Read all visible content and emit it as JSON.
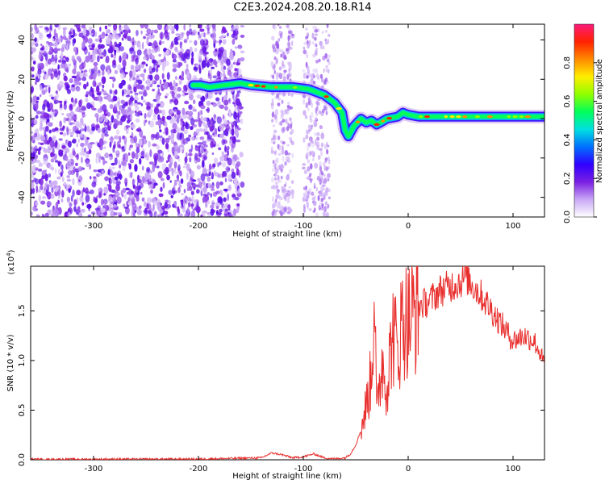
{
  "figure": {
    "title": "C2E3.2024.208.20.18.R14"
  },
  "chart_data": [
    {
      "type": "heatmap",
      "xlabel": "Height of straight line (km)",
      "ylabel": "Frequency (Hz)",
      "xlim": [
        -360,
        130
      ],
      "ylim": [
        -50,
        48
      ],
      "x_ticks": [
        -300,
        -200,
        -100,
        0,
        100
      ],
      "y_ticks": [
        -40,
        -20,
        0,
        20,
        40
      ],
      "colorbar": {
        "label": "Normalized spectral amplitude",
        "range": [
          0,
          1
        ],
        "ticks": [
          0.0,
          0.2,
          0.4,
          0.6,
          0.8
        ],
        "colors": [
          "#ffffff",
          "#c9a7f5",
          "#7a1fe3",
          "#3000ff",
          "#0070ff",
          "#00e0e0",
          "#00ff5a",
          "#90ff00",
          "#ffee00",
          "#ff8a00",
          "#ff2200",
          "#ff1a7a"
        ]
      },
      "noise_region": {
        "x": [
          -360,
          -158
        ],
        "y": [
          -50,
          48
        ]
      },
      "noise_streaks": [
        [
          -130,
          -110
        ],
        [
          -100,
          -75
        ]
      ],
      "signal_track": {
        "x": [
          -205,
          -198,
          -190,
          -160,
          -150,
          -130,
          -110,
          -95,
          -80,
          -70,
          -63,
          -60,
          -57,
          -52,
          -45,
          -40,
          -35,
          -30,
          -20,
          -10,
          -5,
          0,
          10,
          30,
          60,
          90,
          130
        ],
        "freq": [
          17,
          17,
          16,
          18,
          17,
          16,
          16,
          15,
          12,
          8,
          3,
          -6,
          -9,
          -4,
          0,
          -2,
          -1,
          -3,
          0,
          1,
          3,
          2,
          1,
          1,
          1,
          1,
          1
        ]
      }
    },
    {
      "type": "line",
      "xlabel": "Height of straight line (km)",
      "ylabel": "SNR (10 * v/v)",
      "y_multiplier": "(x10",
      "y_multiplier_exp": "4",
      "y_multiplier_close": ")",
      "xlim": [
        -360,
        130
      ],
      "ylim": [
        0,
        1.95
      ],
      "x_ticks": [
        -300,
        -200,
        -100,
        0,
        100
      ],
      "y_ticks": [
        "0.0",
        "0.5",
        "1.0",
        "1.5"
      ],
      "line_color": "#e8302e",
      "series": [
        {
          "x": [
            -360,
            -200,
            -140,
            -130,
            -120,
            -110,
            -100,
            -90,
            -80,
            -70,
            -60,
            -55,
            -50,
            -45,
            -40,
            -35,
            -32,
            -30,
            -28,
            -25,
            -20,
            -15,
            -10,
            -5,
            0,
            10,
            20,
            30,
            40,
            50,
            55,
            60,
            70,
            80,
            90,
            100,
            110,
            120,
            125,
            130
          ],
          "y": [
            0.005,
            0.008,
            0.02,
            0.07,
            0.05,
            0.02,
            0.03,
            0.06,
            0.02,
            0.01,
            0.02,
            0.06,
            0.15,
            0.3,
            0.55,
            0.85,
            1.85,
            0.4,
            0.7,
            1.0,
            0.75,
            1.3,
            1.1,
            1.45,
            1.4,
            1.55,
            1.6,
            1.7,
            1.75,
            1.8,
            1.85,
            1.78,
            1.65,
            1.5,
            1.35,
            1.2,
            1.25,
            1.2,
            1.1,
            0.95
          ]
        }
      ]
    }
  ]
}
